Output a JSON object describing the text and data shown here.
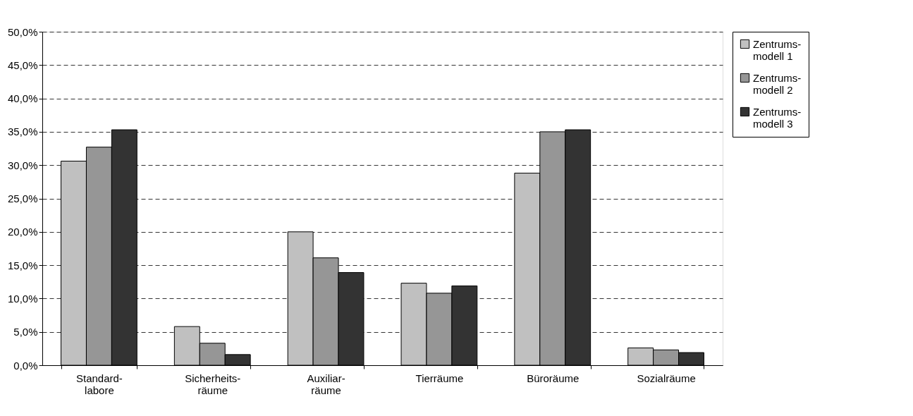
{
  "chart_data": {
    "type": "bar",
    "categories": [
      "Standard-\nlabore",
      "Sicherheits-\nräume",
      "Auxiliar-\nräume",
      "Tierräume",
      "Büroräume",
      "Sozialräume"
    ],
    "series": [
      {
        "name": "Zentrums-\nmodell 1",
        "color": "#c0c0c0",
        "values": [
          30.6,
          5.8,
          20.0,
          12.3,
          28.8,
          2.6
        ]
      },
      {
        "name": "Zentrums-\nmodell 2",
        "color": "#969696",
        "values": [
          32.7,
          3.3,
          16.1,
          10.8,
          35.0,
          2.3
        ]
      },
      {
        "name": "Zentrums-\nmodell 3",
        "color": "#333333",
        "values": [
          35.3,
          1.6,
          13.9,
          11.9,
          35.3,
          1.9
        ]
      }
    ],
    "ylim": [
      0,
      50
    ],
    "yticks": [
      {
        "value": 0,
        "label": "0,0%"
      },
      {
        "value": 5,
        "label": "5,0%"
      },
      {
        "value": 10,
        "label": "10,0%"
      },
      {
        "value": 15,
        "label": "15,0%"
      },
      {
        "value": 20,
        "label": "20,0%"
      },
      {
        "value": 25,
        "label": "25,0%"
      },
      {
        "value": 30,
        "label": "30,0%"
      },
      {
        "value": 35,
        "label": "35,0%"
      },
      {
        "value": 40,
        "label": "40,0%"
      },
      {
        "value": 45,
        "label": "45,0%"
      },
      {
        "value": 50,
        "label": "50,0%"
      }
    ],
    "grid": "y",
    "legend": "right"
  }
}
